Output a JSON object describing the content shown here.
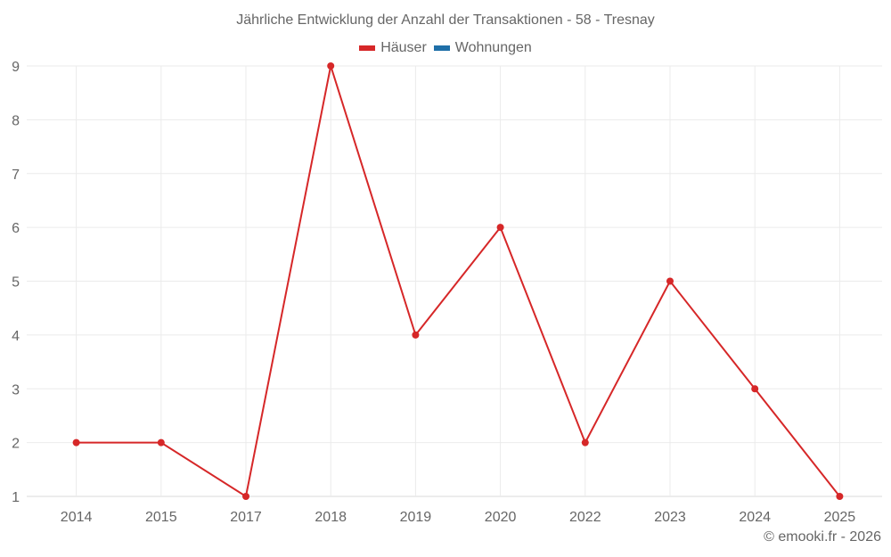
{
  "chart_data": {
    "type": "line",
    "title": "Jährliche Entwicklung der Anzahl der Transaktionen - 58 - Tresnay",
    "categories": [
      "2014",
      "2015",
      "2017",
      "2018",
      "2019",
      "2020",
      "2022",
      "2023",
      "2024",
      "2025"
    ],
    "series": [
      {
        "name": "Häuser",
        "color": "#d62728",
        "values": [
          2,
          2,
          1,
          9,
          4,
          6,
          2,
          5,
          3,
          1
        ]
      },
      {
        "name": "Wohnungen",
        "color": "#1f6fa8",
        "values": []
      }
    ],
    "xlabel": "",
    "ylabel": "",
    "ylim": [
      1,
      9
    ],
    "yticks": [
      1,
      2,
      3,
      4,
      5,
      6,
      7,
      8,
      9
    ],
    "grid": true,
    "legend_position": "top"
  },
  "legend": {
    "items": [
      {
        "label": "Häuser",
        "color": "#d62728"
      },
      {
        "label": "Wohnungen",
        "color": "#1f6fa8"
      }
    ]
  },
  "credit": "© emooki.fr - 2026"
}
